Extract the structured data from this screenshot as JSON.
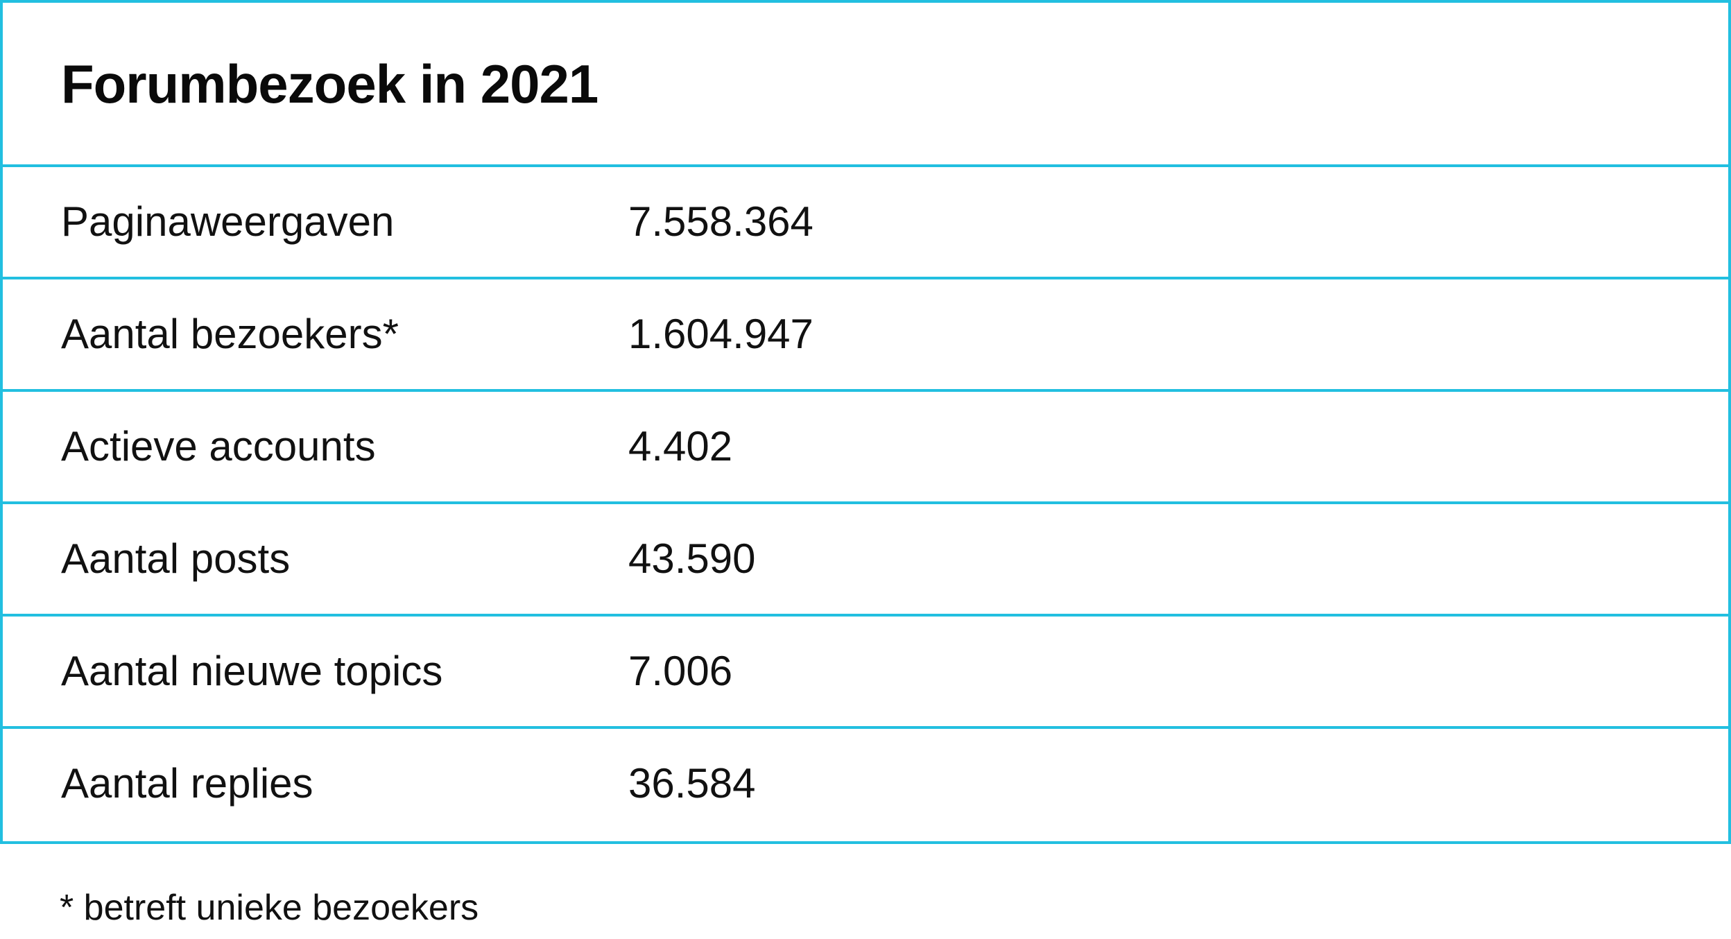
{
  "table": {
    "title": "Forumbezoek in 2021",
    "rows": [
      {
        "label": "Paginaweergaven",
        "value": "7.558.364"
      },
      {
        "label": "Aantal bezoekers*",
        "value": "1.604.947"
      },
      {
        "label": "Actieve accounts",
        "value": "4.402"
      },
      {
        "label": "Aantal posts",
        "value": "43.590"
      },
      {
        "label": "Aantal nieuwe topics",
        "value": "7.006"
      },
      {
        "label": "Aantal replies",
        "value": "36.584"
      }
    ]
  },
  "footnote": "* betreft unieke bezoekers",
  "colors": {
    "border": "#22bfe0",
    "text": "#111111",
    "background": "#ffffff"
  }
}
